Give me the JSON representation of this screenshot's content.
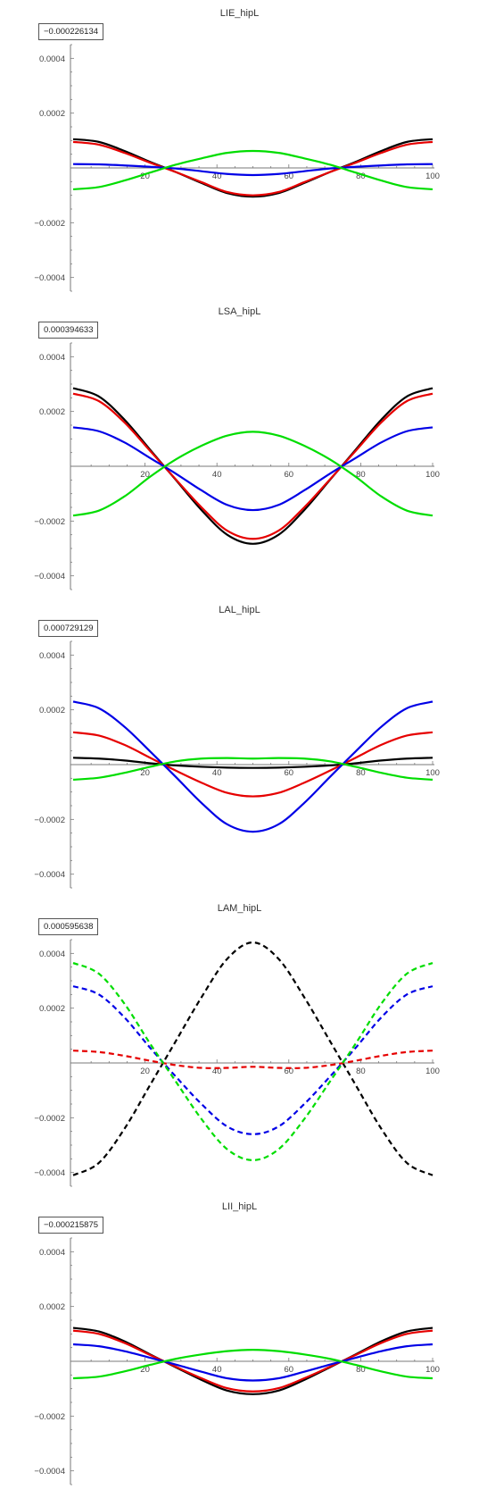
{
  "colors": {
    "black": "#000000",
    "red": "#e60000",
    "blue": "#0000e6",
    "green": "#00dd00",
    "axis": "#7a7a7a"
  },
  "chart_data": [
    {
      "type": "line",
      "title": "LIE_hipL",
      "value_box": "−0.000226134",
      "xlim": [
        0,
        100
      ],
      "ylim": [
        -0.00045,
        0.00045
      ],
      "x_ticks": [
        "20",
        "40",
        "60",
        "80",
        "100"
      ],
      "y_ticks": [
        "0.0004",
        "0.0002",
        "−0.0002",
        "−0.0004"
      ],
      "series": [
        {
          "color": "black",
          "dashed": false,
          "values": [
            0.000105,
            9.5e-05,
            6.2e-05,
            2.2e-05,
            -1.5e-05,
            -5.5e-05,
            -9.2e-05,
            -0.000105,
            -9.2e-05,
            -5.5e-05,
            -1.5e-05,
            2.2e-05,
            6.2e-05,
            9.5e-05,
            0.000105
          ]
        },
        {
          "color": "red",
          "dashed": false,
          "values": [
            9.5e-05,
            8.5e-05,
            5.5e-05,
            1.9e-05,
            -1.5e-05,
            -5.2e-05,
            -8.8e-05,
            -0.0001,
            -8.8e-05,
            -5.2e-05,
            -1.5e-05,
            1.9e-05,
            5.5e-05,
            8.5e-05,
            9.5e-05
          ]
        },
        {
          "color": "blue",
          "dashed": false,
          "values": [
            1.4e-05,
            1.3e-05,
            9e-06,
            4e-06,
            -2e-06,
            -1.2e-05,
            -2.2e-05,
            -2.6e-05,
            -2.2e-05,
            -1.2e-05,
            -2e-06,
            4e-06,
            9e-06,
            1.3e-05,
            1.4e-05
          ]
        },
        {
          "color": "green",
          "dashed": false,
          "values": [
            -7.8e-05,
            -7e-05,
            -4.6e-05,
            -1.7e-05,
            1.2e-05,
            3.5e-05,
            5.5e-05,
            6.2e-05,
            5.5e-05,
            3.5e-05,
            1.2e-05,
            -1.7e-05,
            -4.6e-05,
            -7e-05,
            -7.8e-05
          ]
        }
      ]
    },
    {
      "type": "line",
      "title": "LSA_hipL",
      "value_box": "0.000394633",
      "xlim": [
        0,
        100
      ],
      "ylim": [
        -0.00045,
        0.00045
      ],
      "x_ticks": [
        "20",
        "40",
        "60",
        "80",
        "100"
      ],
      "y_ticks": [
        "0.0004",
        "0.0002",
        "−0.0002",
        "−0.0004"
      ],
      "series": [
        {
          "color": "black",
          "dashed": false,
          "values": [
            0.000285,
            0.000255,
            0.00017,
            6e-05,
            -5e-05,
            -0.00016,
            -0.00025,
            -0.000283,
            -0.00025,
            -0.00016,
            -5e-05,
            6e-05,
            0.00017,
            0.000255,
            0.000285
          ]
        },
        {
          "color": "red",
          "dashed": false,
          "values": [
            0.000265,
            0.000238,
            0.00016,
            5.6e-05,
            -4.8e-05,
            -0.00015,
            -0.000235,
            -0.000265,
            -0.000235,
            -0.00015,
            -4.8e-05,
            5.6e-05,
            0.00016,
            0.000238,
            0.000265
          ]
        },
        {
          "color": "blue",
          "dashed": false,
          "values": [
            0.000142,
            0.000128,
            8.7e-05,
            3e-05,
            -2.7e-05,
            -8.8e-05,
            -0.000141,
            -0.00016,
            -0.000141,
            -8.8e-05,
            -2.7e-05,
            3e-05,
            8.7e-05,
            0.000128,
            0.000142
          ]
        },
        {
          "color": "green",
          "dashed": false,
          "values": [
            -0.00018,
            -0.000162,
            -0.00011,
            -3.8e-05,
            2.5e-05,
            7.5e-05,
            0.000112,
            0.000126,
            0.000112,
            7.5e-05,
            2.5e-05,
            -3.8e-05,
            -0.00011,
            -0.000162,
            -0.00018
          ]
        }
      ]
    },
    {
      "type": "line",
      "title": "LAL_hipL",
      "value_box": "0.000729129",
      "xlim": [
        0,
        100
      ],
      "ylim": [
        -0.00045,
        0.00045
      ],
      "x_ticks": [
        "20",
        "40",
        "60",
        "80",
        "100"
      ],
      "y_ticks": [
        "0.0004",
        "0.0002",
        "−0.0002",
        "−0.0004"
      ],
      "series": [
        {
          "color": "black",
          "dashed": false,
          "values": [
            2.5e-05,
            2.2e-05,
            1.5e-05,
            5e-06,
            -3e-06,
            -8e-06,
            -1.1e-05,
            -1.2e-05,
            -1.1e-05,
            -8e-06,
            -3e-06,
            5e-06,
            1.5e-05,
            2.2e-05,
            2.5e-05
          ]
        },
        {
          "color": "red",
          "dashed": false,
          "values": [
            0.000118,
            0.000106,
            7.2e-05,
            2.5e-05,
            -2.2e-05,
            -6.6e-05,
            -0.000103,
            -0.000116,
            -0.000103,
            -6.6e-05,
            -2.2e-05,
            2.5e-05,
            7.2e-05,
            0.000106,
            0.000118
          ]
        },
        {
          "color": "blue",
          "dashed": false,
          "values": [
            0.00023,
            0.000206,
            0.000138,
            4.8e-05,
            -4.5e-05,
            -0.00014,
            -0.000218,
            -0.000245,
            -0.000218,
            -0.00014,
            -4.5e-05,
            4.8e-05,
            0.000138,
            0.000206,
            0.00023
          ]
        },
        {
          "color": "green",
          "dashed": false,
          "values": [
            -5.5e-05,
            -4.8e-05,
            -3e-05,
            -8e-06,
            1.2e-05,
            2.2e-05,
            2.4e-05,
            2.2e-05,
            2.4e-05,
            2.2e-05,
            1.2e-05,
            -8e-06,
            -3e-05,
            -4.8e-05,
            -5.5e-05
          ]
        }
      ]
    },
    {
      "type": "line",
      "title": "LAM_hipL",
      "value_box": "0.000595638",
      "xlim": [
        0,
        100
      ],
      "ylim": [
        -0.00045,
        0.00045
      ],
      "x_ticks": [
        "20",
        "40",
        "60",
        "80",
        "100"
      ],
      "y_ticks": [
        "0.0004",
        "0.0002",
        "−0.0002",
        "−0.0004"
      ],
      "series": [
        {
          "color": "black",
          "dashed": true,
          "values": [
            -0.00041,
            -0.000365,
            -0.00024,
            -8e-05,
            8e-05,
            0.00024,
            0.00038,
            0.00044,
            0.00038,
            0.00024,
            8e-05,
            -8e-05,
            -0.00024,
            -0.000365,
            -0.00041
          ]
        },
        {
          "color": "red",
          "dashed": true,
          "values": [
            4.5e-05,
            4e-05,
            2.6e-05,
            8e-06,
            -8e-06,
            -1.8e-05,
            -1.8e-05,
            -1.4e-05,
            -1.8e-05,
            -1.8e-05,
            -8e-06,
            8e-06,
            2.6e-05,
            4e-05,
            4.5e-05
          ]
        },
        {
          "color": "blue",
          "dashed": true,
          "values": [
            0.00028,
            0.00025,
            0.000166,
            5.5e-05,
            -5e-05,
            -0.00015,
            -0.000232,
            -0.00026,
            -0.000232,
            -0.00015,
            -5e-05,
            5.5e-05,
            0.000166,
            0.00025,
            0.00028
          ]
        },
        {
          "color": "green",
          "dashed": true,
          "values": [
            0.000365,
            0.000326,
            0.000216,
            7e-05,
            -6.8e-05,
            -0.000205,
            -0.000315,
            -0.000355,
            -0.000315,
            -0.000205,
            -6.8e-05,
            7e-05,
            0.000216,
            0.000326,
            0.000365
          ]
        }
      ]
    },
    {
      "type": "line",
      "title": "LII_hipL",
      "value_box": "−0.000215875",
      "xlim": [
        0,
        100
      ],
      "ylim": [
        -0.00045,
        0.00045
      ],
      "x_ticks": [
        "20",
        "40",
        "60",
        "80",
        "100"
      ],
      "y_ticks": [
        "0.0004",
        "0.0002",
        "−0.0002",
        "−0.0004"
      ],
      "series": [
        {
          "color": "black",
          "dashed": false,
          "values": [
            0.000122,
            0.000109,
            7.3e-05,
            2.5e-05,
            -2.2e-05,
            -6.8e-05,
            -0.000107,
            -0.00012,
            -0.000107,
            -6.8e-05,
            -2.2e-05,
            2.5e-05,
            7.3e-05,
            0.000109,
            0.000122
          ]
        },
        {
          "color": "red",
          "dashed": false,
          "values": [
            0.000112,
            0.0001,
            6.7e-05,
            2.3e-05,
            -2e-05,
            -6.2e-05,
            -9.8e-05,
            -0.00011,
            -9.8e-05,
            -6.2e-05,
            -2e-05,
            2.3e-05,
            6.7e-05,
            0.0001,
            0.000112
          ]
        },
        {
          "color": "blue",
          "dashed": false,
          "values": [
            6.2e-05,
            5.5e-05,
            3.7e-05,
            1.3e-05,
            -1.2e-05,
            -3.8e-05,
            -6.2e-05,
            -7e-05,
            -6.2e-05,
            -3.8e-05,
            -1.2e-05,
            1.3e-05,
            3.7e-05,
            5.5e-05,
            6.2e-05
          ]
        },
        {
          "color": "green",
          "dashed": false,
          "values": [
            -6.2e-05,
            -5.6e-05,
            -3.7e-05,
            -1.3e-05,
            9e-06,
            2.5e-05,
            3.7e-05,
            4.2e-05,
            3.7e-05,
            2.5e-05,
            9e-06,
            -1.3e-05,
            -3.7e-05,
            -5.6e-05,
            -6.2e-05
          ]
        }
      ]
    }
  ]
}
